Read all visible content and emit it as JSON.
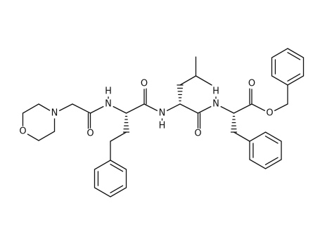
{
  "atoms": [
    {
      "label": "O"
    },
    {
      "label": "N"
    },
    {
      "label": "O"
    },
    {
      "label": "N"
    },
    {
      "label": "H"
    },
    {
      "label": "O"
    },
    {
      "label": "N"
    },
    {
      "label": "H"
    },
    {
      "label": "O"
    },
    {
      "label": "N"
    },
    {
      "label": "H"
    },
    {
      "label": "O"
    },
    {
      "label": "O"
    }
  ]
}
